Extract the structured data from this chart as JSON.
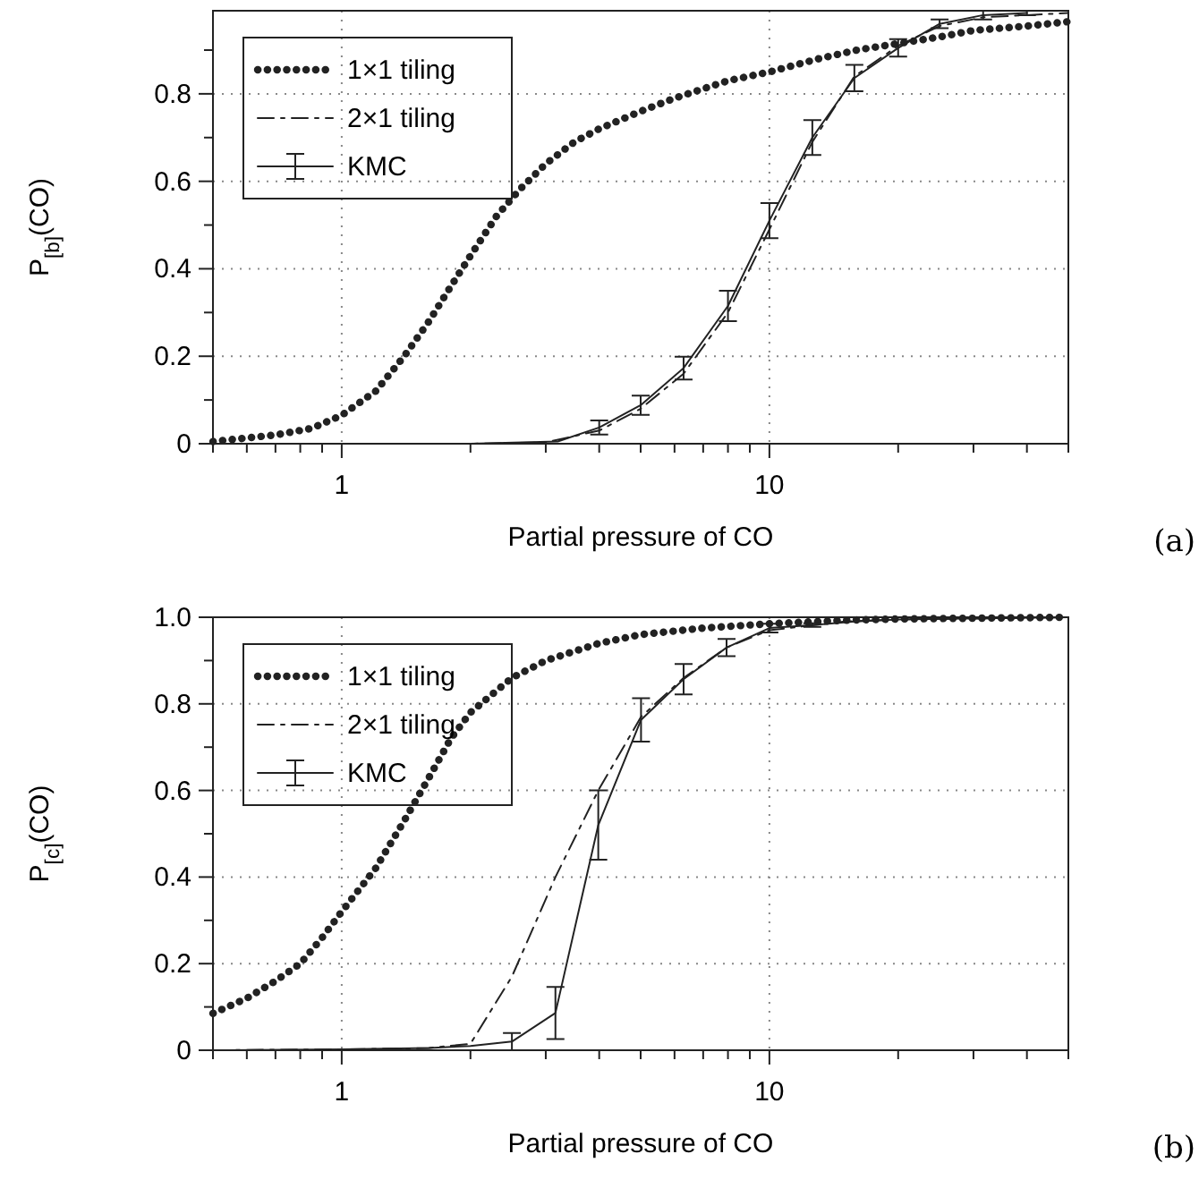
{
  "chart_data": [
    {
      "type": "line",
      "xlabel": "Partial pressure of CO",
      "ylabel": "P$_{[b]}$(CO)",
      "log": "x",
      "grid": true,
      "legend": "top left",
      "marker": "none",
      "annotations": [
        "(a)"
      ],
      "xlim": [
        0.5,
        50
      ],
      "xticks": [
        {
          "value": 0.5,
          "label": null
        },
        {
          "value": 0.6,
          "label": null
        },
        {
          "value": 0.7,
          "label": null
        },
        {
          "value": 0.8,
          "label": null
        },
        {
          "value": 0.9,
          "label": null
        },
        {
          "value": 1,
          "label": "1"
        },
        {
          "value": 2,
          "label": null
        },
        {
          "value": 3,
          "label": null
        },
        {
          "value": 4,
          "label": null
        },
        {
          "value": 5,
          "label": null
        },
        {
          "value": 6,
          "label": null
        },
        {
          "value": 7,
          "label": null
        },
        {
          "value": 8,
          "label": null
        },
        {
          "value": 9,
          "label": null
        },
        {
          "value": 10,
          "label": "10"
        },
        {
          "value": 20,
          "label": null
        },
        {
          "value": 30,
          "label": null
        },
        {
          "value": 40,
          "label": null
        },
        {
          "value": 50,
          "label": null
        }
      ],
      "ylim": [
        0,
        0.99
      ],
      "yticks": [
        0,
        {
          "value": 0.1,
          "label": null
        },
        0.2,
        {
          "value": 0.3,
          "label": null
        },
        0.4,
        {
          "value": 0.5,
          "label": null
        },
        0.6,
        {
          "value": 0.7,
          "label": null
        },
        0.8,
        {
          "value": 0.9,
          "label": null
        }
      ],
      "series": [
        {
          "name": "1×1 tiling",
          "color": "#222222",
          "line_style": "dotted",
          "x": [
            0.5,
            0.7,
            0.85,
            1,
            1.2,
            1.4,
            1.6,
            1.8,
            2,
            2.3,
            2.6,
            3,
            3.5,
            4,
            5,
            6,
            8,
            10,
            13,
            16,
            20,
            25,
            30,
            40,
            50
          ],
          "values": [
            0.005,
            0.02,
            0.035,
            0.065,
            0.12,
            0.2,
            0.28,
            0.36,
            0.43,
            0.52,
            0.58,
            0.64,
            0.69,
            0.72,
            0.76,
            0.79,
            0.83,
            0.85,
            0.88,
            0.9,
            0.915,
            0.93,
            0.945,
            0.955,
            0.965
          ]
        },
        {
          "name": "2×1 tiling",
          "color": "#222222",
          "line_style": "dashed",
          "x": [
            0.5,
            2,
            3,
            4,
            5,
            6.3,
            8,
            10,
            12.6,
            15.8,
            20,
            25,
            31.6,
            40,
            50
          ],
          "values": [
            0,
            0,
            0.003,
            0.03,
            0.08,
            0.16,
            0.3,
            0.49,
            0.69,
            0.84,
            0.91,
            0.955,
            0.975,
            0.98,
            0.985
          ]
        },
        {
          "name": "KMC",
          "color": "#222222",
          "line_style": "solid",
          "x": [
            0.5,
            1,
            2,
            3.2,
            4,
            5,
            6.3,
            8,
            10,
            12.6,
            15.8,
            20,
            25,
            31.6,
            40
          ],
          "values": [
            0,
            0,
            0,
            0.005,
            0.037,
            0.088,
            0.173,
            0.315,
            0.51,
            0.7,
            0.836,
            0.905,
            0.96,
            0.98,
            0.985
          ],
          "errors": [
            null,
            null,
            null,
            null,
            0.016,
            0.022,
            0.026,
            0.035,
            0.04,
            0.04,
            0.03,
            0.02,
            0.01,
            0.01,
            0.005
          ]
        }
      ]
    },
    {
      "type": "line",
      "xlabel": "Partial pressure of CO",
      "ylabel": "P$_{[c]}$(CO)",
      "log": "x",
      "grid": true,
      "legend": "top left",
      "marker": "none",
      "annotations": [
        "(b)"
      ],
      "xlim": [
        0.5,
        50
      ],
      "xticks": [
        {
          "value": 0.5,
          "label": null
        },
        {
          "value": 0.6,
          "label": null
        },
        {
          "value": 0.7,
          "label": null
        },
        {
          "value": 0.8,
          "label": null
        },
        {
          "value": 0.9,
          "label": null
        },
        {
          "value": 1,
          "label": "1"
        },
        {
          "value": 2,
          "label": null
        },
        {
          "value": 3,
          "label": null
        },
        {
          "value": 4,
          "label": null
        },
        {
          "value": 5,
          "label": null
        },
        {
          "value": 6,
          "label": null
        },
        {
          "value": 7,
          "label": null
        },
        {
          "value": 8,
          "label": null
        },
        {
          "value": 9,
          "label": null
        },
        {
          "value": 10,
          "label": "10"
        },
        {
          "value": 20,
          "label": null
        },
        {
          "value": 30,
          "label": null
        },
        {
          "value": 40,
          "label": null
        },
        {
          "value": 50,
          "label": null
        }
      ],
      "ylim": [
        0,
        1
      ],
      "yticks": [
        0,
        {
          "value": 0.1,
          "label": null
        },
        0.2,
        {
          "value": 0.3,
          "label": null
        },
        0.4,
        {
          "value": 0.5,
          "label": null
        },
        0.6,
        {
          "value": 0.7,
          "label": null
        },
        0.8,
        {
          "value": 0.9,
          "label": null
        },
        {
          "value": 1,
          "label": "1.0"
        }
      ],
      "series": [
        {
          "name": "1×1 tiling",
          "color": "#222222",
          "line_style": "dotted",
          "x": [
            0.5,
            0.6,
            0.7,
            0.8,
            0.9,
            1,
            1.2,
            1.4,
            1.6,
            1.8,
            2,
            2.5,
            3,
            4,
            5,
            7,
            10,
            15,
            20,
            50
          ],
          "values": [
            0.085,
            0.12,
            0.16,
            0.2,
            0.26,
            0.32,
            0.42,
            0.53,
            0.63,
            0.72,
            0.78,
            0.86,
            0.9,
            0.94,
            0.96,
            0.975,
            0.985,
            0.993,
            0.996,
            1
          ]
        },
        {
          "name": "2×1 tiling",
          "color": "#222222",
          "line_style": "dashed",
          "x": [
            0.5,
            1,
            1.6,
            2,
            2.5,
            3.16,
            3.98,
            5.01,
            6.3,
            7.94,
            10,
            15,
            20,
            50
          ],
          "values": [
            0,
            0.002,
            0.005,
            0.015,
            0.17,
            0.4,
            0.6,
            0.77,
            0.86,
            0.93,
            0.97,
            0.99,
            0.995,
            1
          ]
        },
        {
          "name": "KMC",
          "color": "#222222",
          "line_style": "solid",
          "x": [
            0.5,
            1,
            1.6,
            2,
            2.5,
            3.16,
            3.98,
            5.01,
            6.3,
            7.94,
            10,
            12.6,
            15.8,
            20,
            50
          ],
          "values": [
            0,
            0.002,
            0.005,
            0.01,
            0.02,
            0.086,
            0.52,
            0.763,
            0.857,
            0.93,
            0.975,
            0.982,
            0.99,
            0.995,
            1
          ],
          "errors": [
            null,
            null,
            null,
            null,
            0.02,
            0.06,
            0.08,
            0.05,
            0.035,
            0.02,
            0.01,
            0.004,
            null,
            null,
            null
          ]
        }
      ]
    }
  ]
}
